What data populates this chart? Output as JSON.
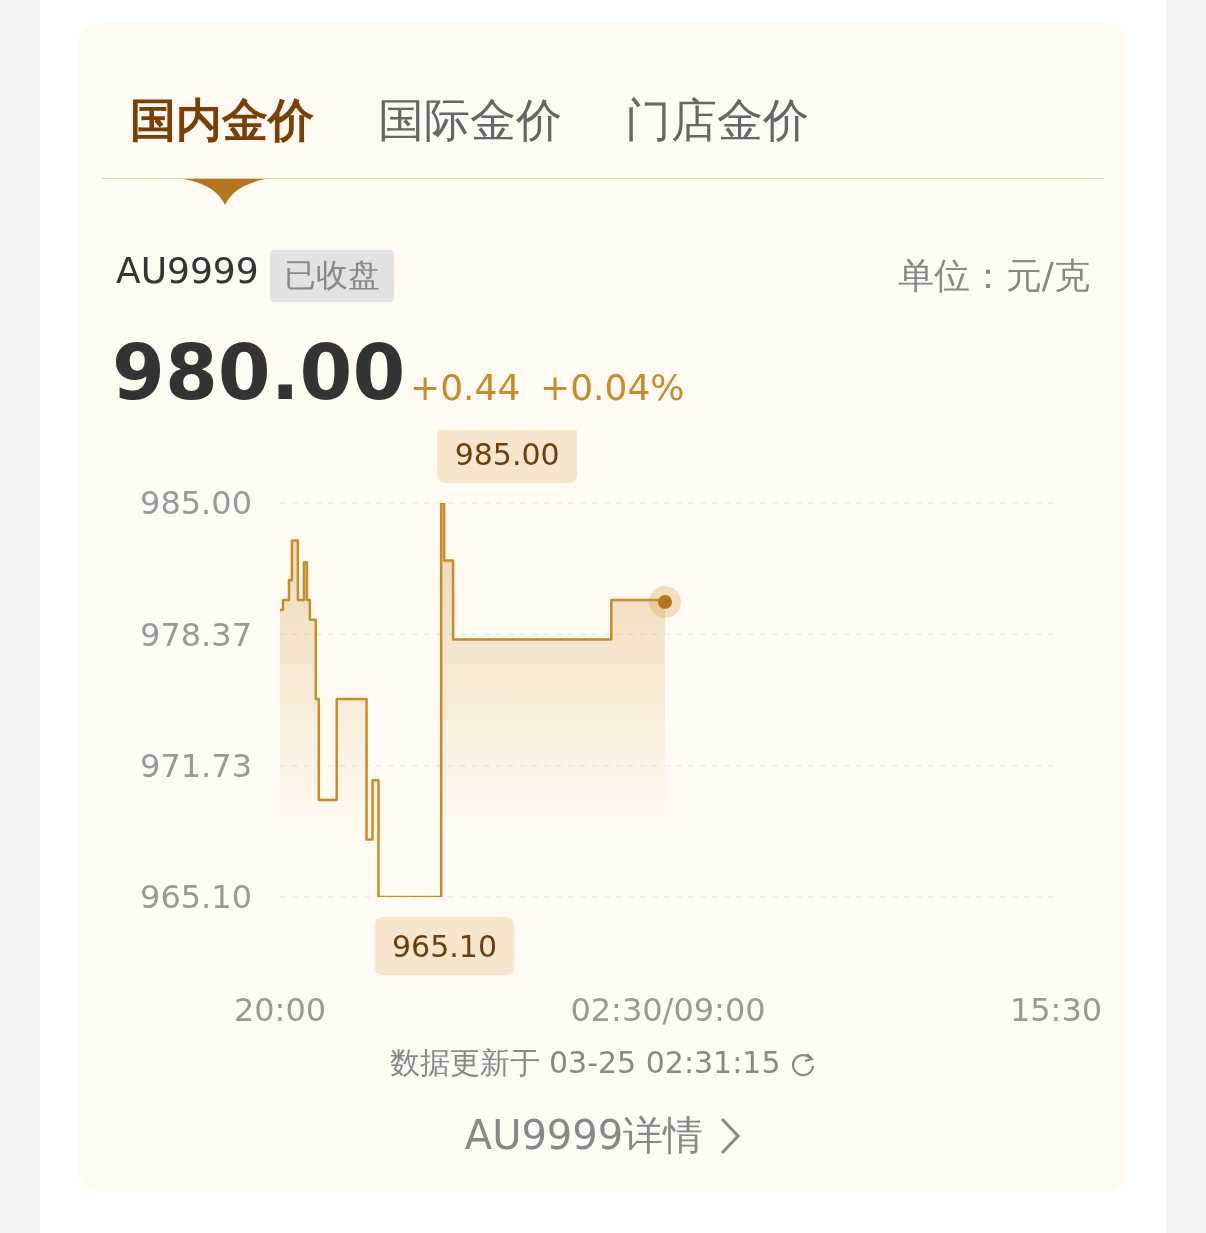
{
  "chart_data": {
    "type": "step",
    "annotations": [
      "国内金价",
      "国际金价",
      "门店金价",
      "AU9999",
      "已收盘",
      "单位：元/克",
      "980.00",
      "+0.44",
      "+0.04%",
      "数据更新于 03-25 02:31:15",
      "AU9999详情",
      "985.00",
      "965.10"
    ],
    "categories": [
      "20:00",
      null,
      null,
      null,
      null,
      null,
      null,
      null,
      null,
      null,
      null,
      null,
      null,
      null,
      null,
      null,
      null,
      null,
      null,
      null,
      null,
      null,
      null,
      null,
      null,
      null,
      null,
      null,
      null,
      null,
      null,
      null,
      null,
      null,
      null,
      null,
      null,
      null,
      null,
      null,
      null,
      null,
      null,
      null,
      null,
      null,
      null,
      null,
      null,
      null,
      null,
      null,
      null,
      null,
      null,
      null,
      null,
      null,
      null,
      null,
      null,
      null,
      null,
      null,
      null,
      null,
      null,
      null,
      null,
      null,
      null,
      null,
      null,
      null,
      null,
      null,
      null,
      null,
      null,
      null,
      null,
      null,
      null,
      null,
      null,
      null,
      null,
      null,
      null,
      null,
      null,
      null,
      null,
      null,
      null,
      null,
      null,
      null,
      null,
      null,
      null,
      null,
      null,
      null,
      null,
      null,
      null,
      null,
      null,
      null,
      null,
      null,
      null,
      null,
      null,
      null,
      null,
      null,
      null,
      null,
      null,
      null,
      null,
      null,
      null,
      null,
      null,
      null,
      null,
      null,
      "02:30/09:00",
      null,
      null,
      null,
      null,
      null,
      null,
      null,
      null,
      null,
      null,
      null,
      null,
      null,
      null,
      null,
      null,
      null,
      null,
      null,
      null,
      null,
      null,
      null,
      null,
      null,
      null,
      null,
      null,
      null,
      null,
      null,
      null,
      null,
      null,
      null,
      null,
      null,
      null,
      null,
      null,
      null,
      null,
      null,
      null,
      null,
      null,
      null,
      null,
      null,
      null,
      null,
      null,
      null,
      null,
      null,
      null,
      null,
      null,
      null,
      null,
      null,
      null,
      null,
      null,
      null,
      null,
      null,
      null,
      null,
      null,
      null,
      null,
      null,
      null,
      null,
      null,
      null,
      null,
      null,
      null,
      null,
      null,
      null,
      null,
      null,
      null,
      null,
      null,
      null,
      null,
      null,
      null,
      null,
      null,
      null,
      null,
      null,
      null,
      null,
      null,
      null,
      null,
      null,
      null,
      null,
      null,
      null,
      null,
      null,
      null,
      null,
      null,
      null,
      null,
      null,
      null,
      null,
      null,
      null,
      null,
      null,
      null,
      null,
      null,
      null,
      null,
      null,
      null,
      null,
      "15:30"
    ],
    "series": [
      {
        "color": "#c98b26",
        "values": [
          979.6,
          980.1,
          980.1,
          981.1,
          983.1,
          983.1,
          980.1,
          980.1,
          982.0,
          980.1,
          979.1,
          979.1,
          975.1,
          970.0,
          970.0,
          970.0,
          970.0,
          970.0,
          970.0,
          975.1,
          975.1,
          975.1,
          975.1,
          975.1,
          975.1,
          975.1,
          975.1,
          975.1,
          975.1,
          968.0,
          968.0,
          971.0,
          971.0,
          965.1,
          965.1,
          965.1,
          965.1,
          965.1,
          965.1,
          965.1,
          965.1,
          965.1,
          965.1,
          965.1,
          965.1,
          965.1,
          965.1,
          965.1,
          965.1,
          965.1,
          965.1,
          965.1,
          965.1,
          965.1,
          985.0,
          982.1,
          982.1,
          982.1,
          978.1,
          978.1,
          978.1,
          978.1,
          978.1,
          978.1,
          978.1,
          978.1,
          978.1,
          978.1,
          978.1,
          978.1,
          978.1,
          978.1,
          978.1,
          978.1,
          978.1,
          978.1,
          978.1,
          978.1,
          978.1,
          978.1,
          978.1,
          978.1,
          978.1,
          978.1,
          978.1,
          978.1,
          978.1,
          978.1,
          978.1,
          978.1,
          978.1,
          978.1,
          978.1,
          978.1,
          978.1,
          978.1,
          978.1,
          978.1,
          978.1,
          978.1,
          978.1,
          978.1,
          978.1,
          978.1,
          978.1,
          978.1,
          978.1,
          978.1,
          978.1,
          978.1,
          978.1,
          980.1,
          980.1,
          980.1,
          980.1,
          980.1,
          980.1,
          980.1,
          980.1,
          980.1,
          980.1,
          980.1,
          980.1,
          980.1,
          980.1,
          980.1,
          980.1,
          980.1,
          980.1,
          980.0,
          null,
          null,
          null,
          null,
          null,
          null,
          null,
          null,
          null,
          null,
          null,
          null,
          null,
          null,
          null,
          null,
          null,
          null,
          null,
          null,
          null,
          null,
          null,
          null,
          null,
          null,
          null,
          null,
          null,
          null,
          null,
          null,
          null,
          null,
          null,
          null,
          null,
          null,
          null,
          null,
          null,
          null,
          null,
          null,
          null,
          null,
          null,
          null,
          null,
          null,
          null,
          null,
          null,
          null,
          null,
          null,
          null,
          null,
          null,
          null,
          null,
          null,
          null,
          null,
          null,
          null,
          null,
          null,
          null,
          null,
          null,
          null,
          null,
          null,
          null,
          null,
          null,
          null,
          null,
          null,
          null,
          null,
          null,
          null,
          null,
          null,
          null,
          null,
          null,
          null,
          null,
          null,
          null,
          null,
          null,
          null,
          null,
          null,
          null,
          null,
          null,
          null,
          null,
          null,
          null,
          null,
          null,
          null,
          null,
          null,
          null,
          null,
          null,
          null,
          null,
          null,
          null,
          null,
          null,
          null,
          null,
          null,
          null,
          null,
          null,
          null,
          null,
          null,
          null,
          null,
          null
        ]
      }
    ],
    "ylim": [
      965.1,
      985.0
    ],
    "yticks": [
      {
        "value": 965.1,
        "label": "965.10"
      },
      971.73,
      978.37,
      {
        "value": 985.0,
        "label": "985.00"
      }
    ],
    "grid": "y"
  }
}
